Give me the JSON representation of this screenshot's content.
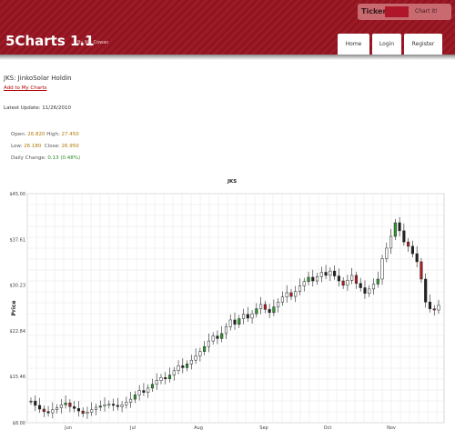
{
  "header": {
    "app_title": "5Charts 1.1",
    "byline": "By Nik Cowan",
    "ticker_label": "Ticker",
    "chart_button": "Chart it!",
    "nav": [
      "Home",
      "Login",
      "Register"
    ],
    "colors": {
      "header_bg": "#9c1b27",
      "accent": "#b0162a"
    }
  },
  "stock": {
    "title": "JKS: JinkoSolar Holdin",
    "add_link": "Add to My Charts",
    "latest_update": "Latest Update: 11/26/2010",
    "open_label": "Open:",
    "open": "26.820",
    "high_label": "High:",
    "high": "27.450",
    "low_label": "Low:",
    "low": "26.180",
    "close_label": "Close:",
    "close": "26.950",
    "change_label": "Daily Change:",
    "change": "0.13 (0.48%)"
  },
  "chart_data": {
    "type": "candlestick",
    "title": "JKS",
    "ylabel": "Price",
    "y_ticks": [
      "$45.00",
      "$37.61",
      "$30.23",
      "$22.84",
      "$15.46",
      "$8.00"
    ],
    "ylim": [
      8.0,
      45.0
    ],
    "x_ticks": [
      "Jun",
      "Jul",
      "Aug",
      "Sep",
      "Oct",
      "Nov"
    ],
    "grid": true,
    "series": [
      {
        "name": "JKS",
        "values": [
          11.5,
          10.8,
          10.2,
          9.8,
          9.6,
          10.1,
          10.4,
          10.9,
          11.2,
          10.6,
          10.3,
          9.9,
          9.5,
          9.7,
          10.1,
          10.5,
          10.7,
          10.9,
          11.0,
          10.8,
          10.6,
          10.9,
          11.3,
          11.8,
          12.5,
          13.2,
          12.9,
          13.6,
          14.2,
          14.8,
          15.3,
          15.1,
          15.7,
          16.4,
          17.2,
          16.9,
          17.5,
          18.1,
          18.8,
          19.5,
          20.3,
          21.2,
          22.0,
          21.6,
          22.4,
          23.5,
          24.6,
          23.9,
          24.8,
          25.5,
          24.9,
          25.6,
          26.4,
          27.1,
          26.3,
          25.8,
          26.7,
          27.5,
          28.3,
          29.0,
          28.4,
          29.2,
          30.1,
          30.8,
          31.5,
          30.9,
          31.6,
          32.3,
          31.8,
          32.5,
          31.7,
          30.9,
          30.2,
          31.0,
          31.8,
          30.5,
          29.8,
          28.9,
          29.6,
          30.4,
          31.2,
          34.5,
          36.2,
          38.1,
          40.3,
          39.0,
          37.2,
          36.5,
          35.3,
          34.0,
          31.2,
          27.5,
          26.4,
          26.2,
          26.95
        ]
      }
    ]
  }
}
